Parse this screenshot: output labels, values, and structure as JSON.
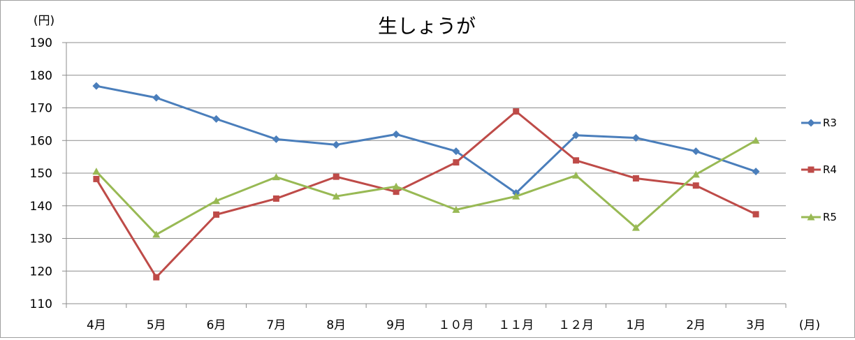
{
  "chart_data": {
    "type": "line",
    "title": "生しょうが",
    "ylabel": "(円)",
    "xlabel": "(月)",
    "categories": [
      "4月",
      "5月",
      "6月",
      "7月",
      "8月",
      "9月",
      "１０月",
      "１１月",
      "１２月",
      "1月",
      "2月",
      "3月"
    ],
    "ylim": [
      110,
      190
    ],
    "yticks": [
      110,
      120,
      130,
      140,
      150,
      160,
      170,
      180,
      190
    ],
    "grid": true,
    "legend_position": "right",
    "series": [
      {
        "name": "R3",
        "color": "#4a7ebb",
        "marker": "diamond",
        "values": [
          176.7,
          173.1,
          166.6,
          160.4,
          158.7,
          161.9,
          156.7,
          143.9,
          161.6,
          160.8,
          156.7,
          150.5
        ]
      },
      {
        "name": "R4",
        "color": "#be4b48",
        "marker": "square",
        "values": [
          148.2,
          118.1,
          137.3,
          142.2,
          148.9,
          144.3,
          153.3,
          168.9,
          153.9,
          148.4,
          146.2,
          137.4
        ]
      },
      {
        "name": "R5",
        "color": "#98b954",
        "marker": "triangle",
        "values": [
          150.5,
          131.2,
          141.5,
          148.8,
          142.9,
          145.9,
          138.8,
          142.9,
          149.3,
          133.3,
          149.6,
          160.0
        ]
      }
    ]
  }
}
